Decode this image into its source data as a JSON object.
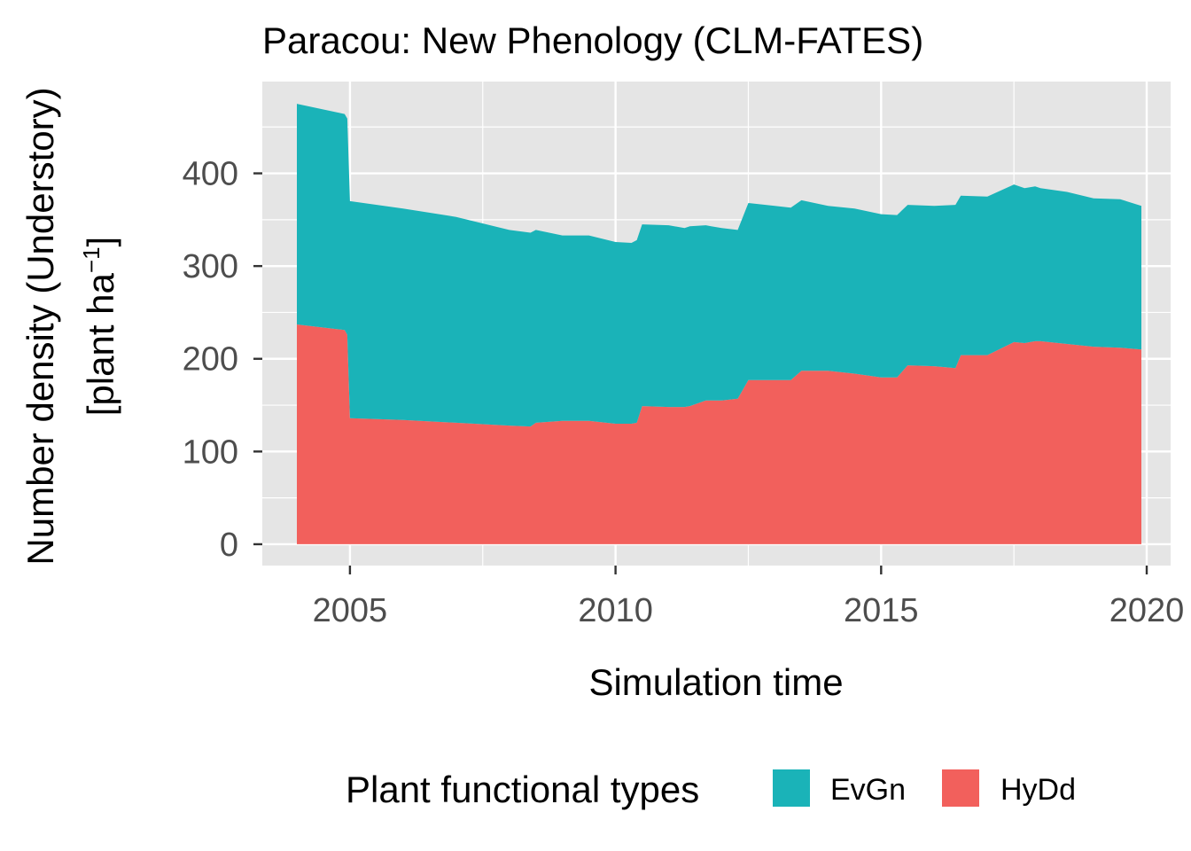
{
  "chart_data": {
    "type": "area",
    "stacked": true,
    "title": "Paracou: New Phenology (CLM-FATES)",
    "xlabel": "Simulation time",
    "ylabel_line1": "Number density (Understory)",
    "ylabel_line2_prefix": "[plant ha",
    "ylabel_line2_sup": "−1",
    "ylabel_line2_suffix": "]",
    "xlim": [
      2003.35,
      2020.45
    ],
    "ylim": [
      -23,
      499
    ],
    "x_ticks": [
      2005,
      2010,
      2015,
      2020
    ],
    "x_tick_labels": [
      "2005",
      "2010",
      "2015",
      "2020"
    ],
    "y_ticks": [
      0,
      100,
      200,
      300,
      400
    ],
    "y_tick_labels": [
      "0",
      "100",
      "200",
      "300",
      "400"
    ],
    "grid": true,
    "legend": {
      "title": "Plant functional types",
      "position": "bottom",
      "entries": [
        "EvGn",
        "HyDd"
      ]
    },
    "colors": {
      "EvGn": "#1ab3b8",
      "HyDd": "#f2605c",
      "panel": "#e5e5e5",
      "grid": "#ffffff"
    },
    "x": [
      2004.0,
      2004.9,
      2004.95,
      2005.0,
      2006.0,
      2007.0,
      2008.0,
      2008.4,
      2008.5,
      2009.0,
      2009.5,
      2010.0,
      2010.3,
      2010.4,
      2010.5,
      2011.0,
      2011.3,
      2011.4,
      2011.7,
      2011.8,
      2012.0,
      2012.3,
      2012.5,
      2013.0,
      2013.3,
      2013.5,
      2014.0,
      2014.5,
      2015.0,
      2015.3,
      2015.5,
      2016.0,
      2016.4,
      2016.5,
      2017.0,
      2017.5,
      2017.7,
      2017.9,
      2018.0,
      2018.5,
      2019.0,
      2019.5,
      2019.9
    ],
    "series": [
      {
        "name": "HyDd",
        "values": [
          237,
          231,
          226,
          136,
          134,
          131,
          128,
          127,
          131,
          133,
          133,
          130,
          130,
          131,
          149,
          148,
          148,
          149,
          155,
          155,
          155,
          157,
          177,
          177,
          177,
          187,
          187,
          184,
          180,
          180,
          193,
          192,
          190,
          204,
          204,
          218,
          217,
          219,
          219,
          216,
          213,
          212,
          210
        ]
      },
      {
        "name": "EvGn",
        "values": [
          238,
          233,
          233,
          234,
          228,
          222,
          211,
          209,
          208,
          200,
          200,
          196,
          195,
          197,
          196,
          196,
          193,
          194,
          189,
          188,
          186,
          182,
          191,
          188,
          186,
          184,
          178,
          178,
          176,
          175,
          173,
          173,
          176,
          172,
          171,
          170,
          167,
          167,
          165,
          164,
          160,
          160,
          155
        ]
      }
    ]
  }
}
